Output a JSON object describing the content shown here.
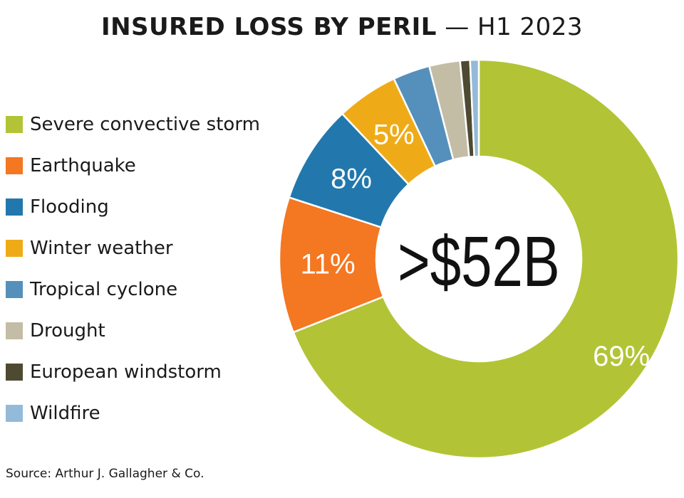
{
  "chart_data": {
    "type": "pie",
    "title": "INSURED LOSS BY PERIL",
    "subtitle": "— H1 2023",
    "center_label": ">$52B",
    "source": "Source: Arthur J. Gallagher & Co.",
    "legend_position": "left",
    "slices": [
      {
        "label": "Severe convective storm",
        "value": 69,
        "color": "#b2c435",
        "data_label": "69%"
      },
      {
        "label": "Earthquake",
        "value": 11,
        "color": "#f47721",
        "data_label": "11%"
      },
      {
        "label": "Flooding",
        "value": 8,
        "color": "#2278ad",
        "data_label": "8%"
      },
      {
        "label": "Winter weather",
        "value": 5,
        "color": "#efab17",
        "data_label": "5%"
      },
      {
        "label": "Tropical cyclone",
        "value": 3,
        "color": "#5590bc",
        "data_label": ""
      },
      {
        "label": "Drought",
        "value": 2.5,
        "color": "#c4bda6",
        "data_label": ""
      },
      {
        "label": "European windstorm",
        "value": 0.8,
        "color": "#4e4a32",
        "data_label": ""
      },
      {
        "label": "Wildfire",
        "value": 0.7,
        "color": "#93bad8",
        "data_label": ""
      }
    ]
  }
}
